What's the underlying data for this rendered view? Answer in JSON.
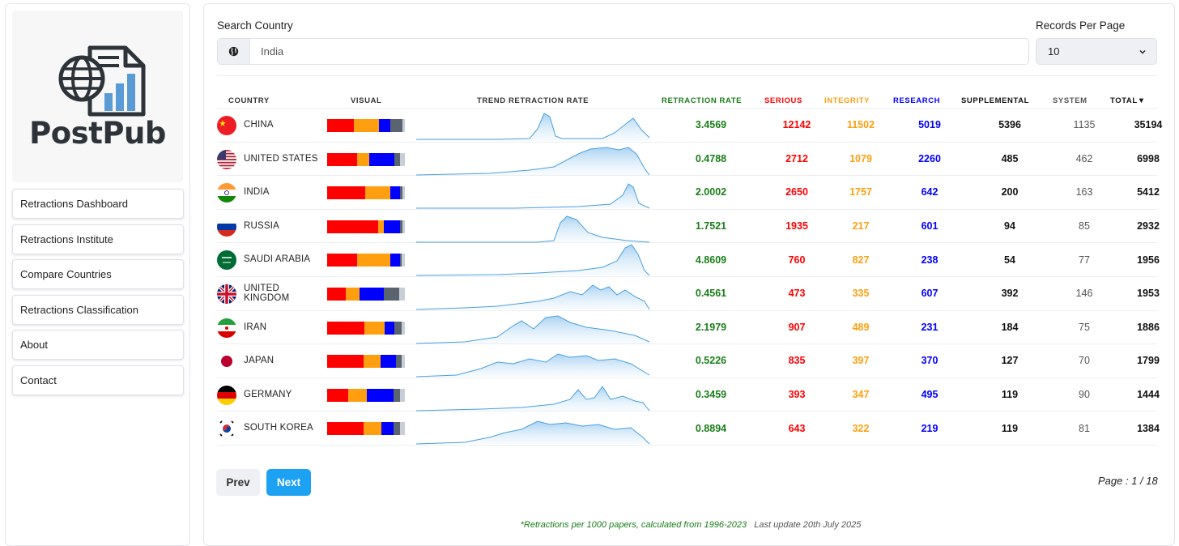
{
  "logo": {
    "text": "PostPub"
  },
  "sidebar": {
    "items": [
      {
        "label": "Retractions Dashboard"
      },
      {
        "label": "Retractions Institute"
      },
      {
        "label": "Compare Countries"
      },
      {
        "label": "Retractions Classification"
      },
      {
        "label": "About"
      },
      {
        "label": "Contact"
      }
    ]
  },
  "search": {
    "label": "Search Country",
    "value": "India",
    "icon": "globe-icon"
  },
  "records": {
    "label": "Records Per Page",
    "value": "10",
    "icon": "chevron-down-icon"
  },
  "table": {
    "headers": {
      "country": "COUNTRY",
      "visual": "VISUAL",
      "trend": "TREND RETRACTION RATE",
      "rate": "RETRACTION RATE",
      "serious": "SERIOUS",
      "integrity": "INTEGRITY",
      "research": "RESEARCH",
      "supplemental": "SUPPLEMENTAL",
      "system": "SYSTEM",
      "total": "TOTAL▼"
    },
    "colors": {
      "rate": "#1a7d1a",
      "serious": "#ff0000",
      "integrity": "#ff9f0f",
      "research": "#0000ff",
      "supplemental": "#111111",
      "system": "#555555",
      "total": "#111111",
      "visual": [
        "#ff0000",
        "#ff9f0f",
        "#0000ff",
        "#5a6470",
        "#c9ced6"
      ]
    },
    "rows": [
      {
        "country": "CHINA",
        "flag": "china-flag-icon",
        "rate": "3.4569",
        "serious": "12142",
        "integrity": "11502",
        "research": "5019",
        "supplemental": "5396",
        "system": "1135",
        "total": "35194"
      },
      {
        "country": "UNITED STATES",
        "flag": "usa-flag-icon",
        "rate": "0.4788",
        "serious": "2712",
        "integrity": "1079",
        "research": "2260",
        "supplemental": "485",
        "system": "462",
        "total": "6998"
      },
      {
        "country": "INDIA",
        "flag": "india-flag-icon",
        "rate": "2.0002",
        "serious": "2650",
        "integrity": "1757",
        "research": "642",
        "supplemental": "200",
        "system": "163",
        "total": "5412"
      },
      {
        "country": "RUSSIA",
        "flag": "russia-flag-icon",
        "rate": "1.7521",
        "serious": "1935",
        "integrity": "217",
        "research": "601",
        "supplemental": "94",
        "system": "85",
        "total": "2932"
      },
      {
        "country": "SAUDI ARABIA",
        "flag": "saudi-flag-icon",
        "rate": "4.8609",
        "serious": "760",
        "integrity": "827",
        "research": "238",
        "supplemental": "54",
        "system": "77",
        "total": "1956"
      },
      {
        "country": "UNITED\nKINGDOM",
        "flag": "uk-flag-icon",
        "rate": "0.4561",
        "serious": "473",
        "integrity": "335",
        "research": "607",
        "supplemental": "392",
        "system": "146",
        "total": "1953"
      },
      {
        "country": "IRAN",
        "flag": "iran-flag-icon",
        "rate": "2.1979",
        "serious": "907",
        "integrity": "489",
        "research": "231",
        "supplemental": "184",
        "system": "75",
        "total": "1886"
      },
      {
        "country": "JAPAN",
        "flag": "japan-flag-icon",
        "rate": "0.5226",
        "serious": "835",
        "integrity": "397",
        "research": "370",
        "supplemental": "127",
        "system": "70",
        "total": "1799"
      },
      {
        "country": "GERMANY",
        "flag": "germany-flag-icon",
        "rate": "0.3459",
        "serious": "393",
        "integrity": "347",
        "research": "495",
        "supplemental": "119",
        "system": "90",
        "total": "1444"
      },
      {
        "country": "SOUTH KOREA",
        "flag": "korea-flag-icon",
        "rate": "0.8894",
        "serious": "643",
        "integrity": "322",
        "research": "219",
        "supplemental": "119",
        "system": "81",
        "total": "1384"
      }
    ]
  },
  "pagination": {
    "prev": "Prev",
    "next": "Next",
    "page_info": "Page : 1 / 18"
  },
  "footer": {
    "note": "*Retractions per 1000 papers, calculated from 1996-2023",
    "update": "Last update 20th July 2025",
    "note_color": "#1a7d1a",
    "update_color": "#555555"
  }
}
